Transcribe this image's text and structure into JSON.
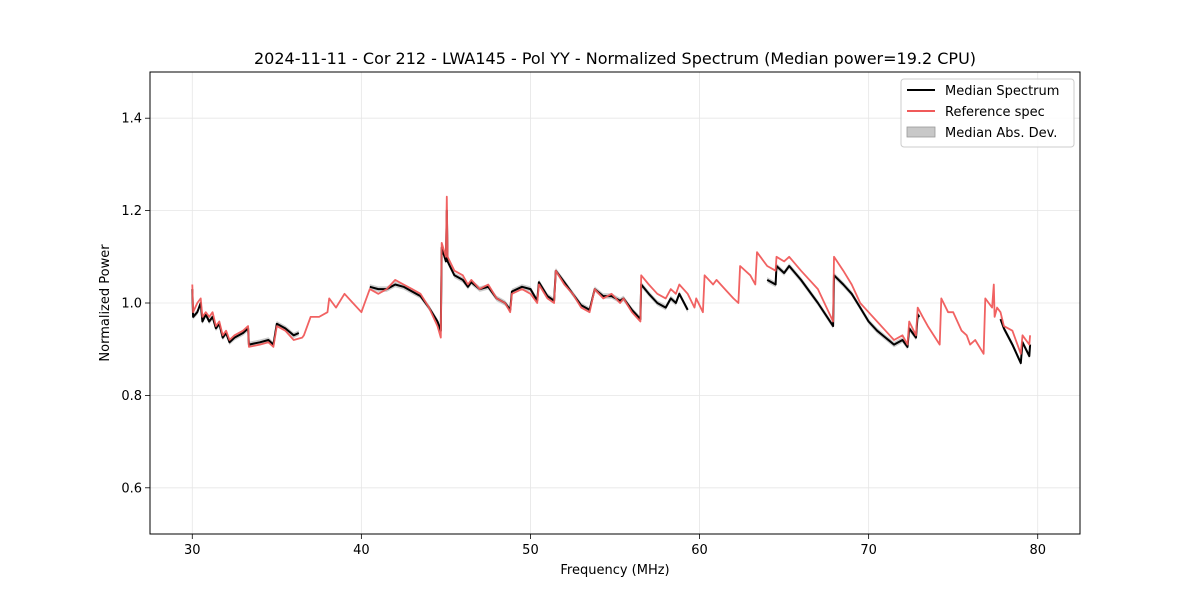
{
  "chart_data": {
    "type": "line",
    "title": "2024-11-11 - Cor 212 - LWA145 - Pol YY - Normalized Spectrum (Median power=19.2 CPU)",
    "xlabel": "Frequency (MHz)",
    "ylabel": "Normalized Power",
    "xlim": [
      27.5,
      82.5
    ],
    "ylim": [
      0.5,
      1.5
    ],
    "xticks": [
      30,
      40,
      50,
      60,
      70,
      80
    ],
    "yticks": [
      0.6,
      0.8,
      1.0,
      1.2,
      1.4
    ],
    "xtick_labels": [
      "30",
      "40",
      "50",
      "60",
      "70",
      "80"
    ],
    "ytick_labels": [
      "0.6",
      "0.8",
      "1.0",
      "1.2",
      "1.4"
    ],
    "grid": true,
    "legend_position": "top-right",
    "legend": [
      "Median Spectrum",
      "Reference spec",
      "Median Abs. Dev."
    ],
    "colors": {
      "median": "#000000",
      "reference": "#f05a5a",
      "mad": "#c8c8c8",
      "grid": "#e6e6e6"
    },
    "series": [
      {
        "name": "Reference spec",
        "segments": [
          [
            [
              30.0,
              1.04
            ],
            [
              30.05,
              0.98
            ],
            [
              30.3,
              1.0
            ],
            [
              30.5,
              1.01
            ],
            [
              30.6,
              0.97
            ],
            [
              30.8,
              0.98
            ],
            [
              31.0,
              0.97
            ],
            [
              31.2,
              0.98
            ],
            [
              31.4,
              0.95
            ],
            [
              31.6,
              0.96
            ],
            [
              31.8,
              0.93
            ],
            [
              32.0,
              0.94
            ],
            [
              32.2,
              0.92
            ],
            [
              32.5,
              0.93
            ],
            [
              33.0,
              0.94
            ],
            [
              33.3,
              0.95
            ],
            [
              33.35,
              0.905
            ],
            [
              34.0,
              0.91
            ],
            [
              34.5,
              0.915
            ],
            [
              34.8,
              0.905
            ],
            [
              35.0,
              0.95
            ],
            [
              35.5,
              0.94
            ],
            [
              36.0,
              0.92
            ],
            [
              36.5,
              0.925
            ],
            [
              36.6,
              0.93
            ],
            [
              37.0,
              0.97
            ],
            [
              37.5,
              0.97
            ],
            [
              38.0,
              0.98
            ],
            [
              38.1,
              1.01
            ],
            [
              38.5,
              0.99
            ],
            [
              39.0,
              1.02
            ],
            [
              39.5,
              1.0
            ],
            [
              40.0,
              0.98
            ],
            [
              40.2,
              1.0
            ],
            [
              40.5,
              1.03
            ],
            [
              41.0,
              1.02
            ],
            [
              41.5,
              1.03
            ],
            [
              42.0,
              1.05
            ],
            [
              42.5,
              1.04
            ],
            [
              43.0,
              1.03
            ],
            [
              43.5,
              1.02
            ],
            [
              44.0,
              0.99
            ],
            [
              44.5,
              0.95
            ],
            [
              44.7,
              0.925
            ],
            [
              44.75,
              1.13
            ],
            [
              45.0,
              1.1
            ],
            [
              45.05,
              1.23
            ],
            [
              45.1,
              1.1
            ],
            [
              45.5,
              1.07
            ],
            [
              46.0,
              1.06
            ],
            [
              46.3,
              1.04
            ],
            [
              46.5,
              1.05
            ],
            [
              47.0,
              1.03
            ],
            [
              47.5,
              1.04
            ],
            [
              48.0,
              1.01
            ],
            [
              48.5,
              1.0
            ],
            [
              48.8,
              0.98
            ],
            [
              48.9,
              1.02
            ],
            [
              49.5,
              1.03
            ],
            [
              50.0,
              1.02
            ],
            [
              50.4,
              1.0
            ],
            [
              50.5,
              1.04
            ],
            [
              51.0,
              1.01
            ],
            [
              51.4,
              1.0
            ],
            [
              51.5,
              1.07
            ],
            [
              52.0,
              1.04
            ],
            [
              52.5,
              1.02
            ],
            [
              53.0,
              0.99
            ],
            [
              53.5,
              0.98
            ],
            [
              53.8,
              1.03
            ],
            [
              54.3,
              1.01
            ],
            [
              54.8,
              1.02
            ],
            [
              55.3,
              1.0
            ],
            [
              55.5,
              1.01
            ],
            [
              56.0,
              0.98
            ],
            [
              56.5,
              0.96
            ],
            [
              56.55,
              1.06
            ],
            [
              57.0,
              1.04
            ],
            [
              57.5,
              1.02
            ],
            [
              58.0,
              1.01
            ],
            [
              58.3,
              1.03
            ],
            [
              58.6,
              1.02
            ],
            [
              58.8,
              1.04
            ],
            [
              59.3,
              1.02
            ],
            [
              59.7,
              0.99
            ],
            [
              59.8,
              1.01
            ],
            [
              60.2,
              0.98
            ],
            [
              60.3,
              1.06
            ],
            [
              60.8,
              1.04
            ],
            [
              61.0,
              1.05
            ],
            [
              61.5,
              1.03
            ],
            [
              62.0,
              1.01
            ],
            [
              62.3,
              1.0
            ],
            [
              62.4,
              1.08
            ],
            [
              63.0,
              1.06
            ],
            [
              63.3,
              1.04
            ],
            [
              63.4,
              1.11
            ],
            [
              64.0,
              1.08
            ],
            [
              64.5,
              1.07
            ],
            [
              64.55,
              1.1
            ],
            [
              65.0,
              1.09
            ],
            [
              65.3,
              1.1
            ],
            [
              66.0,
              1.07
            ],
            [
              67.0,
              1.03
            ],
            [
              67.9,
              0.96
            ],
            [
              67.95,
              1.1
            ],
            [
              68.5,
              1.07
            ],
            [
              69.0,
              1.04
            ],
            [
              69.5,
              1.0
            ],
            [
              70.0,
              0.98
            ],
            [
              70.5,
              0.96
            ],
            [
              71.0,
              0.94
            ],
            [
              71.5,
              0.92
            ],
            [
              72.0,
              0.93
            ],
            [
              72.3,
              0.91
            ],
            [
              72.4,
              0.96
            ],
            [
              72.8,
              0.93
            ],
            [
              72.9,
              0.99
            ],
            [
              73.2,
              0.97
            ],
            [
              73.5,
              0.95
            ],
            [
              74.2,
              0.91
            ],
            [
              74.3,
              1.01
            ],
            [
              74.7,
              0.98
            ],
            [
              75.0,
              0.98
            ],
            [
              75.5,
              0.94
            ],
            [
              75.8,
              0.93
            ],
            [
              76.0,
              0.91
            ],
            [
              76.3,
              0.92
            ],
            [
              76.8,
              0.89
            ],
            [
              76.9,
              1.01
            ],
            [
              77.3,
              0.99
            ],
            [
              77.4,
              1.04
            ],
            [
              77.45,
              0.97
            ],
            [
              77.6,
              0.99
            ],
            [
              77.8,
              0.98
            ],
            [
              78.0,
              0.95
            ],
            [
              78.5,
              0.94
            ],
            [
              79.0,
              0.89
            ],
            [
              79.1,
              0.93
            ],
            [
              79.5,
              0.91
            ],
            [
              79.55,
              0.93
            ]
          ]
        ]
      },
      {
        "name": "Median Spectrum",
        "segments": [
          [
            [
              30.0,
              1.03
            ],
            [
              30.05,
              0.97
            ],
            [
              30.3,
              0.98
            ],
            [
              30.5,
              1.0
            ],
            [
              30.6,
              0.96
            ],
            [
              30.8,
              0.975
            ],
            [
              31.0,
              0.96
            ],
            [
              31.2,
              0.97
            ],
            [
              31.4,
              0.945
            ],
            [
              31.6,
              0.955
            ],
            [
              31.8,
              0.925
            ],
            [
              32.0,
              0.935
            ],
            [
              32.2,
              0.915
            ],
            [
              32.5,
              0.925
            ],
            [
              33.0,
              0.935
            ],
            [
              33.3,
              0.945
            ],
            [
              33.35,
              0.91
            ],
            [
              34.0,
              0.915
            ],
            [
              34.5,
              0.92
            ],
            [
              34.8,
              0.91
            ],
            [
              35.0,
              0.955
            ],
            [
              35.5,
              0.945
            ],
            [
              36.0,
              0.93
            ],
            [
              36.3,
              0.935
            ]
          ],
          [
            [
              40.5,
              1.035
            ],
            [
              41.0,
              1.03
            ],
            [
              41.5,
              1.03
            ],
            [
              42.0,
              1.04
            ],
            [
              42.5,
              1.035
            ],
            [
              43.0,
              1.025
            ],
            [
              43.5,
              1.015
            ],
            [
              44.0,
              0.99
            ],
            [
              44.5,
              0.96
            ],
            [
              44.7,
              0.94
            ],
            [
              44.75,
              1.12
            ],
            [
              45.0,
              1.09
            ],
            [
              45.05,
              1.2
            ],
            [
              45.1,
              1.09
            ],
            [
              45.5,
              1.06
            ],
            [
              46.0,
              1.05
            ],
            [
              46.3,
              1.035
            ],
            [
              46.5,
              1.045
            ],
            [
              47.0,
              1.03
            ],
            [
              47.5,
              1.035
            ],
            [
              48.0,
              1.01
            ],
            [
              48.5,
              1.0
            ],
            [
              48.8,
              0.985
            ],
            [
              48.9,
              1.025
            ],
            [
              49.5,
              1.035
            ],
            [
              50.0,
              1.03
            ],
            [
              50.4,
              1.005
            ],
            [
              50.5,
              1.045
            ],
            [
              51.0,
              1.015
            ],
            [
              51.4,
              1.005
            ],
            [
              51.5,
              1.07
            ],
            [
              52.0,
              1.045
            ],
            [
              52.5,
              1.02
            ],
            [
              53.0,
              0.995
            ],
            [
              53.5,
              0.985
            ],
            [
              53.8,
              1.03
            ],
            [
              54.3,
              1.015
            ],
            [
              54.8,
              1.015
            ],
            [
              55.3,
              1.005
            ],
            [
              55.5,
              1.01
            ],
            [
              56.0,
              0.985
            ],
            [
              56.5,
              0.965
            ],
            [
              56.55,
              1.04
            ],
            [
              57.0,
              1.02
            ],
            [
              57.5,
              1.0
            ],
            [
              58.0,
              0.99
            ],
            [
              58.3,
              1.01
            ],
            [
              58.6,
              1.0
            ],
            [
              58.8,
              1.02
            ],
            [
              59.3,
              0.985
            ]
          ],
          [
            [
              64.0,
              1.05
            ],
            [
              64.5,
              1.04
            ],
            [
              64.55,
              1.08
            ],
            [
              65.0,
              1.065
            ],
            [
              65.3,
              1.08
            ],
            [
              66.0,
              1.05
            ],
            [
              67.0,
              1.0
            ],
            [
              67.9,
              0.95
            ],
            [
              67.95,
              1.06
            ],
            [
              68.5,
              1.04
            ],
            [
              69.0,
              1.02
            ],
            [
              69.5,
              0.99
            ],
            [
              70.0,
              0.96
            ],
            [
              70.5,
              0.94
            ],
            [
              71.0,
              0.925
            ],
            [
              71.5,
              0.91
            ],
            [
              72.0,
              0.92
            ],
            [
              72.3,
              0.905
            ],
            [
              72.4,
              0.945
            ],
            [
              72.8,
              0.925
            ],
            [
              72.9,
              0.975
            ],
            [
              73.0,
              0.97
            ]
          ],
          [
            [
              77.8,
              0.965
            ],
            [
              78.0,
              0.945
            ],
            [
              78.5,
              0.91
            ],
            [
              79.0,
              0.87
            ],
            [
              79.1,
              0.915
            ],
            [
              79.5,
              0.885
            ],
            [
              79.55,
              0.91
            ]
          ]
        ]
      }
    ]
  }
}
